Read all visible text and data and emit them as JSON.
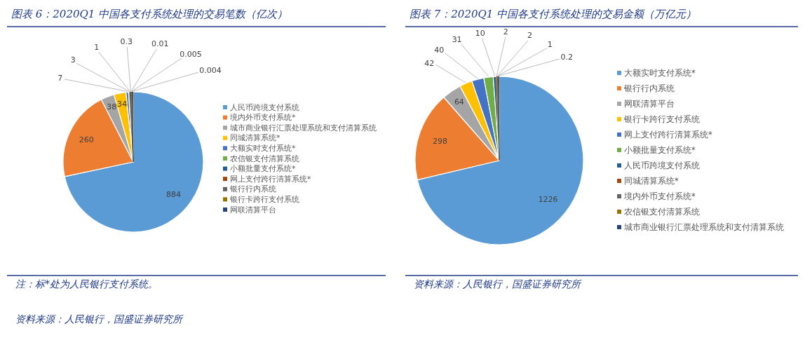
{
  "chart_data": [
    {
      "type": "pie",
      "title": "图表 6：2020Q1 中国各支付系统处理的交易笔数（亿次）",
      "categories": [
        "人民币跨境支付系统",
        "境内外币支付系统*",
        "城市商业银行汇票处理系统和支付清算系统",
        "同城清算系统*",
        "大额实时支付系统*",
        "农信银支付清算系统",
        "小额批量支付系统*",
        "网上支付跨行清算系统*",
        "银行行内系统",
        "银行卡跨行支付系统",
        "网联清算平台"
      ],
      "values": [
        884,
        260,
        38,
        34,
        7,
        3,
        1,
        0.3,
        0.01,
        0.005,
        0.004
      ],
      "colors": [
        "#5b9bd5",
        "#ed7d31",
        "#a5a5a5",
        "#ffc000",
        "#4472c4",
        "#70ad47",
        "#255e91",
        "#9e480e",
        "#636363",
        "#997300",
        "#264478"
      ],
      "data_labels": true,
      "legend": "right",
      "annotations": [
        "注：标*处为人民银行支付系统。",
        "资料来源：人民银行，国盛证券研究所"
      ]
    },
    {
      "type": "pie",
      "title": "图表 7：2020Q1 中国各支付系统处理的交易金额（万亿元）",
      "categories": [
        "大额实时支付系统*",
        "银行行内系统",
        "网联清算平台",
        "银行卡跨行支付系统",
        "网上支付跨行清算系统*",
        "小额批量支付系统*",
        "人民币跨境支付系统",
        "同城清算系统*",
        "境内外币支付系统*",
        "农信银支付清算系统",
        "城市商业银行汇票处理系统和支付清算系统"
      ],
      "values": [
        1226,
        298,
        64,
        42,
        40,
        31,
        10,
        2,
        2,
        1,
        0.2
      ],
      "colors": [
        "#5b9bd5",
        "#ed7d31",
        "#a5a5a5",
        "#ffc000",
        "#4472c4",
        "#70ad47",
        "#255e91",
        "#9e480e",
        "#636363",
        "#997300",
        "#264478"
      ],
      "data_labels": true,
      "legend": "right",
      "annotations": [
        "资料来源：人民银行，国盛证券研究所"
      ]
    }
  ]
}
